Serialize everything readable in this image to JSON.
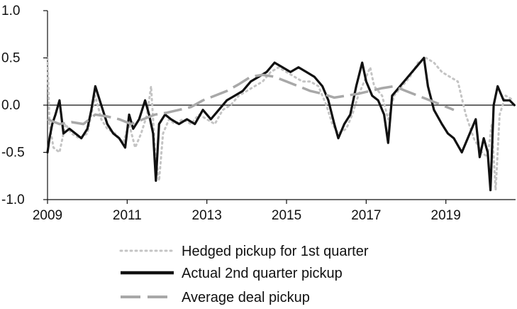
{
  "chart_data": {
    "type": "line",
    "title": "",
    "xlabel": "",
    "ylabel": "",
    "xlim": [
      2009.0,
      2020.75
    ],
    "ylim": [
      -1.0,
      1.0
    ],
    "x_ticks": [
      2009,
      2011,
      2013,
      2015,
      2017,
      2019
    ],
    "x_tick_labels": [
      "2009",
      "2011",
      "2013",
      "2015",
      "2017",
      "2019"
    ],
    "y_ticks": [
      1.0,
      0.5,
      0.0,
      -0.5,
      -1.0
    ],
    "y_tick_labels": [
      "1.0",
      "0.5",
      "0.0",
      "-0.5",
      "-1.0"
    ],
    "zero_line": true,
    "grid": false,
    "legend_position": "bottom",
    "series": [
      {
        "name": "Hedged pickup for 1st quarter",
        "style": "dotted",
        "color": "#c4c4c4",
        "points": [
          [
            2009.0,
            0.5
          ],
          [
            2009.05,
            -0.2
          ],
          [
            2009.15,
            -0.45
          ],
          [
            2009.3,
            -0.5
          ],
          [
            2009.45,
            -0.2
          ],
          [
            2009.6,
            -0.3
          ],
          [
            2009.8,
            -0.35
          ],
          [
            2010.0,
            -0.3
          ],
          [
            2010.1,
            -0.1
          ],
          [
            2010.2,
            0.1
          ],
          [
            2010.35,
            -0.15
          ],
          [
            2010.5,
            -0.25
          ],
          [
            2010.7,
            -0.3
          ],
          [
            2010.9,
            -0.4
          ],
          [
            2011.05,
            -0.2
          ],
          [
            2011.2,
            -0.45
          ],
          [
            2011.35,
            -0.3
          ],
          [
            2011.5,
            -0.1
          ],
          [
            2011.6,
            0.2
          ],
          [
            2011.7,
            -0.5
          ],
          [
            2011.8,
            -0.8
          ],
          [
            2011.9,
            -0.3
          ],
          [
            2012.05,
            -0.15
          ],
          [
            2012.2,
            -0.2
          ],
          [
            2012.4,
            -0.15
          ],
          [
            2012.6,
            -0.2
          ],
          [
            2012.8,
            -0.1
          ],
          [
            2013.0,
            -0.15
          ],
          [
            2013.2,
            -0.2
          ],
          [
            2013.4,
            -0.05
          ],
          [
            2013.6,
            0.0
          ],
          [
            2013.8,
            0.1
          ],
          [
            2014.0,
            0.15
          ],
          [
            2014.2,
            0.2
          ],
          [
            2014.4,
            0.25
          ],
          [
            2014.6,
            0.35
          ],
          [
            2014.8,
            0.4
          ],
          [
            2015.0,
            0.35
          ],
          [
            2015.2,
            0.3
          ],
          [
            2015.4,
            0.25
          ],
          [
            2015.6,
            0.25
          ],
          [
            2015.8,
            0.2
          ],
          [
            2016.0,
            0.0
          ],
          [
            2016.15,
            -0.2
          ],
          [
            2016.3,
            -0.3
          ],
          [
            2016.5,
            -0.25
          ],
          [
            2016.65,
            -0.1
          ],
          [
            2016.8,
            0.1
          ],
          [
            2017.0,
            0.3
          ],
          [
            2017.1,
            0.4
          ],
          [
            2017.2,
            0.2
          ],
          [
            2017.4,
            0.1
          ],
          [
            2017.55,
            -0.15
          ],
          [
            2017.7,
            0.1
          ],
          [
            2017.9,
            0.2
          ],
          [
            2018.1,
            0.3
          ],
          [
            2018.3,
            0.45
          ],
          [
            2018.5,
            0.5
          ],
          [
            2018.7,
            0.45
          ],
          [
            2018.9,
            0.35
          ],
          [
            2019.1,
            0.3
          ],
          [
            2019.3,
            0.25
          ],
          [
            2019.5,
            -0.1
          ],
          [
            2019.7,
            -0.35
          ],
          [
            2019.9,
            -0.5
          ],
          [
            2020.05,
            -0.55
          ],
          [
            2020.15,
            -0.2
          ],
          [
            2020.25,
            -0.9
          ],
          [
            2020.35,
            -0.1
          ],
          [
            2020.5,
            0.1
          ],
          [
            2020.7,
            0.05
          ]
        ]
      },
      {
        "name": "Actual 2nd quarter pickup",
        "style": "solid",
        "color": "#111111",
        "points": [
          [
            2009.0,
            -0.5
          ],
          [
            2009.05,
            -0.35
          ],
          [
            2009.12,
            -0.2
          ],
          [
            2009.2,
            -0.1
          ],
          [
            2009.3,
            0.05
          ],
          [
            2009.4,
            -0.3
          ],
          [
            2009.55,
            -0.25
          ],
          [
            2009.7,
            -0.3
          ],
          [
            2009.85,
            -0.35
          ],
          [
            2010.0,
            -0.25
          ],
          [
            2010.1,
            -0.05
          ],
          [
            2010.2,
            0.2
          ],
          [
            2010.35,
            0.0
          ],
          [
            2010.5,
            -0.2
          ],
          [
            2010.65,
            -0.3
          ],
          [
            2010.8,
            -0.35
          ],
          [
            2010.95,
            -0.45
          ],
          [
            2011.05,
            -0.1
          ],
          [
            2011.15,
            -0.25
          ],
          [
            2011.3,
            -0.15
          ],
          [
            2011.45,
            0.05
          ],
          [
            2011.55,
            -0.1
          ],
          [
            2011.65,
            -0.3
          ],
          [
            2011.72,
            -0.8
          ],
          [
            2011.8,
            -0.2
          ],
          [
            2011.95,
            -0.1
          ],
          [
            2012.1,
            -0.15
          ],
          [
            2012.3,
            -0.2
          ],
          [
            2012.5,
            -0.15
          ],
          [
            2012.7,
            -0.2
          ],
          [
            2012.9,
            -0.05
          ],
          [
            2013.1,
            -0.15
          ],
          [
            2013.3,
            -0.05
          ],
          [
            2013.5,
            0.05
          ],
          [
            2013.7,
            0.1
          ],
          [
            2013.9,
            0.15
          ],
          [
            2014.1,
            0.25
          ],
          [
            2014.3,
            0.3
          ],
          [
            2014.5,
            0.35
          ],
          [
            2014.7,
            0.45
          ],
          [
            2014.9,
            0.4
          ],
          [
            2015.1,
            0.35
          ],
          [
            2015.3,
            0.4
          ],
          [
            2015.5,
            0.35
          ],
          [
            2015.7,
            0.3
          ],
          [
            2015.9,
            0.2
          ],
          [
            2016.05,
            0.05
          ],
          [
            2016.2,
            -0.2
          ],
          [
            2016.3,
            -0.35
          ],
          [
            2016.45,
            -0.2
          ],
          [
            2016.6,
            -0.1
          ],
          [
            2016.75,
            0.2
          ],
          [
            2016.9,
            0.45
          ],
          [
            2017.0,
            0.25
          ],
          [
            2017.15,
            0.1
          ],
          [
            2017.3,
            0.05
          ],
          [
            2017.45,
            -0.1
          ],
          [
            2017.55,
            -0.4
          ],
          [
            2017.65,
            0.1
          ],
          [
            2017.85,
            0.2
          ],
          [
            2018.05,
            0.3
          ],
          [
            2018.25,
            0.4
          ],
          [
            2018.45,
            0.5
          ],
          [
            2018.55,
            0.2
          ],
          [
            2018.7,
            -0.05
          ],
          [
            2018.9,
            -0.2
          ],
          [
            2019.05,
            -0.3
          ],
          [
            2019.2,
            -0.35
          ],
          [
            2019.4,
            -0.5
          ],
          [
            2019.6,
            -0.3
          ],
          [
            2019.75,
            -0.15
          ],
          [
            2019.85,
            -0.55
          ],
          [
            2019.95,
            -0.35
          ],
          [
            2020.05,
            -0.5
          ],
          [
            2020.12,
            -0.9
          ],
          [
            2020.2,
            0.0
          ],
          [
            2020.3,
            0.2
          ],
          [
            2020.45,
            0.05
          ],
          [
            2020.6,
            0.05
          ],
          [
            2020.72,
            0.0
          ]
        ]
      },
      {
        "name": "Average deal pickup",
        "style": "dashed",
        "color": "#a8a8a8",
        "points": [
          [
            2009.0,
            -0.15
          ],
          [
            2009.3,
            -0.2
          ],
          [
            2009.6,
            -0.18
          ],
          [
            2009.9,
            -0.2
          ],
          [
            2010.2,
            -0.1
          ],
          [
            2010.5,
            -0.12
          ],
          [
            2010.8,
            -0.15
          ],
          [
            2011.1,
            -0.2
          ],
          [
            2011.4,
            -0.15
          ],
          [
            2011.7,
            -0.1
          ],
          [
            2012.0,
            -0.08
          ],
          [
            2012.3,
            -0.05
          ],
          [
            2012.6,
            -0.02
          ],
          [
            2012.9,
            0.05
          ],
          [
            2013.2,
            0.1
          ],
          [
            2013.5,
            0.15
          ],
          [
            2013.8,
            0.22
          ],
          [
            2014.1,
            0.3
          ],
          [
            2014.4,
            0.32
          ],
          [
            2014.7,
            0.3
          ],
          [
            2015.0,
            0.25
          ],
          [
            2015.3,
            0.2
          ],
          [
            2015.6,
            0.15
          ],
          [
            2015.9,
            0.12
          ],
          [
            2016.2,
            0.08
          ],
          [
            2016.5,
            0.1
          ],
          [
            2016.8,
            0.12
          ],
          [
            2017.1,
            0.15
          ],
          [
            2017.4,
            0.18
          ],
          [
            2017.7,
            0.2
          ],
          [
            2018.0,
            0.15
          ],
          [
            2018.3,
            0.1
          ],
          [
            2018.6,
            0.05
          ],
          [
            2018.9,
            0.0
          ],
          [
            2019.2,
            -0.05
          ]
        ]
      }
    ]
  },
  "legend": {
    "items": [
      {
        "label": "Hedged pickup for 1st quarter"
      },
      {
        "label": "Actual 2nd quarter pickup"
      },
      {
        "label": "Average deal pickup"
      }
    ]
  }
}
